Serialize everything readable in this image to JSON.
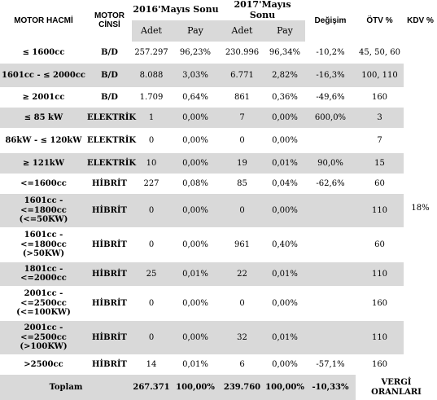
{
  "header": {
    "motor_hacmi": "MOTOR HACMİ",
    "motor_cinsi": "MOTOR CİNSİ",
    "year_2016": "2016'Mayıs Sonu",
    "year_2017": "2017'Mayıs Sonu",
    "degisim": "Değişim",
    "otv": "ÖTV %",
    "kdv": "KDV %",
    "adet": "Adet",
    "pay": "Pay"
  },
  "rows": [
    {
      "hacmi": "≤ 1600cc",
      "cinsi": "B/D",
      "adet16": "257.297",
      "pay16": "96,23%",
      "adet17": "230.996",
      "pay17": "96,34%",
      "degisim": "-10,2%",
      "otv": "45, 50, 60"
    },
    {
      "hacmi": "1601cc - ≤ 2000cc",
      "cinsi": "B/D",
      "adet16": "8.088",
      "pay16": "3,03%",
      "adet17": "6.771",
      "pay17": "2,82%",
      "degisim": "-16,3%",
      "otv": "100, 110"
    },
    {
      "hacmi": "≥ 2001cc",
      "cinsi": "B/D",
      "adet16": "1.709",
      "pay16": "0,64%",
      "adet17": "861",
      "pay17": "0,36%",
      "degisim": "-49,6%",
      "otv": "160"
    },
    {
      "hacmi": "≤ 85 kW",
      "cinsi": "ELEKTRİK",
      "adet16": "1",
      "pay16": "0,00%",
      "adet17": "7",
      "pay17": "0,00%",
      "degisim": "600,0%",
      "otv": "3"
    },
    {
      "hacmi": "86kW - ≤ 120kW",
      "cinsi": "ELEKTRİK",
      "adet16": "0",
      "pay16": "0,00%",
      "adet17": "0",
      "pay17": "0,00%",
      "degisim": "",
      "otv": "7"
    },
    {
      "hacmi": "≥ 121kW",
      "cinsi": "ELEKTRİK",
      "adet16": "10",
      "pay16": "0,00%",
      "adet17": "19",
      "pay17": "0,01%",
      "degisim": "90,0%",
      "otv": "15"
    },
    {
      "hacmi": "<=1600cc",
      "cinsi": "HİBRİT",
      "adet16": "227",
      "pay16": "0,08%",
      "adet17": "85",
      "pay17": "0,04%",
      "degisim": "-62,6%",
      "otv": "60"
    },
    {
      "hacmi": "1601cc - <=1800cc (<=50KW)",
      "cinsi": "HİBRİT",
      "adet16": "0",
      "pay16": "0,00%",
      "adet17": "0",
      "pay17": "0,00%",
      "degisim": "",
      "otv": "110"
    },
    {
      "hacmi": "1601cc - <=1800cc (>50KW)",
      "cinsi": "HİBRİT",
      "adet16": "0",
      "pay16": "0,00%",
      "adet17": "961",
      "pay17": "0,40%",
      "degisim": "",
      "otv": "60"
    },
    {
      "hacmi": "1801cc - <=2000cc",
      "cinsi": "HİBRİT",
      "adet16": "25",
      "pay16": "0,01%",
      "adet17": "22",
      "pay17": "0,01%",
      "degisim": "",
      "otv": "110"
    },
    {
      "hacmi": "2001cc - <=2500cc (<=100KW)",
      "cinsi": "HİBRİT",
      "adet16": "0",
      "pay16": "0,00%",
      "adet17": "0",
      "pay17": "0,00%",
      "degisim": "",
      "otv": "160"
    },
    {
      "hacmi": "2001cc - <=2500cc (>100KW)",
      "cinsi": "HİBRİT",
      "adet16": "0",
      "pay16": "0,00%",
      "adet17": "32",
      "pay17": "0,01%",
      "degisim": "",
      "otv": "110"
    },
    {
      "hacmi": ">2500cc",
      "cinsi": "HİBRİT",
      "adet16": "14",
      "pay16": "0,01%",
      "adet17": "6",
      "pay17": "0,00%",
      "degisim": "-57,1%",
      "otv": "160"
    }
  ],
  "kdv_value": "18%",
  "total": {
    "label": "Toplam",
    "adet16": "267.371",
    "pay16": "100,00%",
    "adet17": "239.760",
    "pay17": "100,00%",
    "degisim": "-10,33%",
    "vergi": "VERGİ ORANLARI"
  }
}
